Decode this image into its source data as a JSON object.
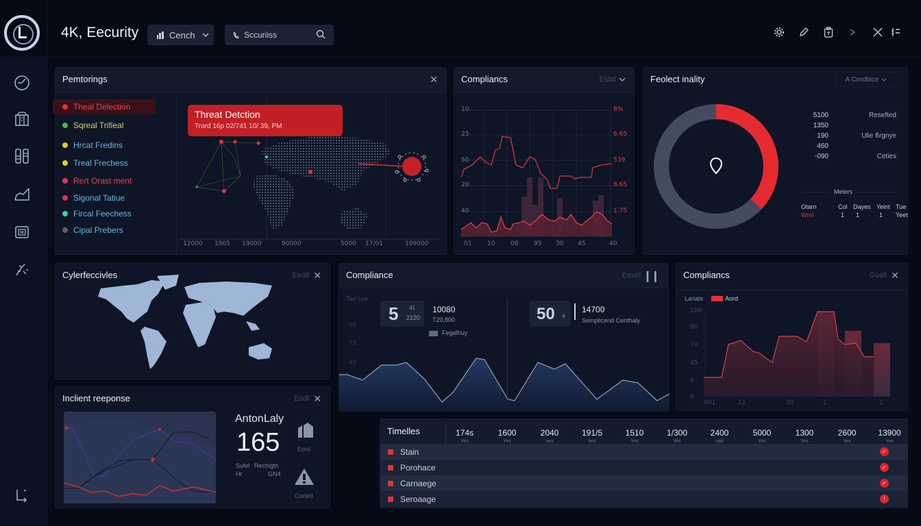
{
  "header": {
    "app_title": "4K, Eecurity",
    "dropdown_label": "Cench",
    "search_value": "Sccuriiss",
    "icons": [
      "gear-icon",
      "pencil-icon",
      "clipboard-icon",
      "chevron-right-icon",
      "close-icon",
      "sliders-icon"
    ]
  },
  "sidebar": {
    "items": [
      {
        "icon": "clock-icon"
      },
      {
        "icon": "building-icon"
      },
      {
        "icon": "columns-icon"
      },
      {
        "icon": "trend-chart-icon"
      },
      {
        "icon": "card-icon"
      },
      {
        "icon": "tool-icon"
      }
    ],
    "bottom_icon": "corner-arrow-icon"
  },
  "panels": {
    "monitoring": {
      "title": "Pemtorings",
      "legend": [
        {
          "label": "Theal Delection",
          "color": "#e0333a",
          "text_color": "#e04848",
          "active": true
        },
        {
          "label": "Sqreal Trifieal",
          "color": "#55b04a",
          "text_color": "#c8d86a"
        },
        {
          "label": "Hrcat Fredins",
          "color": "#e8cc2a",
          "text_color": "#6ab8e0"
        },
        {
          "label": "Treal Frechess",
          "color": "#e8cc2a",
          "text_color": "#6ab8e0"
        },
        {
          "label": "Rert Orast ment",
          "color": "#e0336a",
          "text_color": "#e04858"
        },
        {
          "label": "Sigonal Tatiue",
          "color": "#e0334a",
          "text_color": "#6ab8e0"
        },
        {
          "label": "Fircal Feechess",
          "color": "#2ad8a8",
          "text_color": "#6ab8e0"
        },
        {
          "label": "Cipal Prebers",
          "color": "#6a5a6a",
          "text_color": "#6ab8e0"
        }
      ],
      "alert": {
        "title": "Threat Detction",
        "subtitle": "Trord 16p 02/741 10/ 39, PM"
      },
      "x_ticks": [
        "12000",
        "1905",
        "19000",
        "90000",
        "5000",
        "17/01",
        "109000"
      ]
    },
    "compliance_top": {
      "title": "Compliancs",
      "control": "Estal",
      "y_left": [
        "10",
        "25",
        "50",
        "20",
        "40"
      ],
      "y_right": [
        "8%",
        "6.65",
        "539",
        "8.65",
        "1.75"
      ],
      "x_ticks": [
        "01",
        "10",
        "08",
        "95",
        "30",
        "45",
        "40"
      ]
    },
    "fedect": {
      "title": "Feolect inality",
      "dropdown": "A Cerdbice",
      "donut_percent": 37,
      "stats": [
        {
          "value": "5100",
          "label": "Resefted"
        },
        {
          "value": "1350",
          "label": ""
        },
        {
          "value": "190",
          "label": "Ulie ϐrgnye"
        },
        {
          "value": "460",
          "label": ""
        },
        {
          "value": "-090",
          "label": "Ceties"
        }
      ],
      "divider_label": "Melers",
      "table_headers": [
        "Otarn",
        "Col",
        "Dayes",
        "Yeint",
        "Tue"
      ],
      "table_row": [
        "Wrel",
        "1",
        "1",
        "1",
        "Yeet"
      ]
    },
    "cyber": {
      "title": "Cylerfeccivles",
      "control": "Eeall"
    },
    "compliance_mid": {
      "title": "Compliance",
      "control": "Email",
      "axis_label": "Tao Loe",
      "y_ticks": [
        "50",
        "75",
        "40"
      ],
      "kpi1": {
        "big": "5",
        "small_top": "41",
        "small_bottom": "2220",
        "value": "10080",
        "sub": "T20,800",
        "legend": "Fegalhuy"
      },
      "kpi2": {
        "big": "50",
        "unit": "k",
        "value": "14700",
        "sub": "Semplicend Centhaly"
      }
    },
    "compliance_right": {
      "title": "Compliancs",
      "control": "Goall",
      "legend_label": "Lariats",
      "legend_series": "Aord",
      "y_ticks": [
        "100",
        "80",
        "70",
        "45",
        "8",
        "0"
      ],
      "x_ticks": [
        "001",
        "11",
        "30",
        "1",
        "1"
      ]
    },
    "incident": {
      "title": "Inclient reeponse",
      "control": "Eodl",
      "name": "AntonLaly",
      "count": "165",
      "meta_left_top": "Sufel",
      "meta_left_bottom": "Hr",
      "meta_right_top": "Rechigtn",
      "meta_right_bottom": "GN4",
      "icon1_label": "Eord",
      "icon2_label": "Corled"
    },
    "timeline": {
      "title": "Timelles",
      "columns": [
        {
          "value": "174s",
          "sub": "Yes"
        },
        {
          "value": "1600",
          "sub": "Yes"
        },
        {
          "value": "2040",
          "sub": "nes"
        },
        {
          "value": "191/5",
          "sub": "hes"
        },
        {
          "value": "1510",
          "sub": "Yes"
        },
        {
          "value": "1/300",
          "sub": "Yes"
        },
        {
          "value": "2400",
          "sub": "nad"
        },
        {
          "value": "5000",
          "sub": "Yes"
        },
        {
          "value": "1300",
          "sub": "Yes"
        },
        {
          "value": "2600",
          "sub": "Yes"
        },
        {
          "value": "13900",
          "sub": "Yes"
        }
      ],
      "rows": [
        {
          "label": "Stain",
          "status": "check"
        },
        {
          "label": "Porohace",
          "status": "check"
        },
        {
          "label": "Carnaege",
          "status": "check"
        },
        {
          "label": "Seroaage",
          "status": "alert"
        }
      ]
    }
  },
  "colors": {
    "accent": "#e0333a",
    "background": "#070b17",
    "panel": "#0e1526",
    "donut_track": "#434b5e"
  }
}
